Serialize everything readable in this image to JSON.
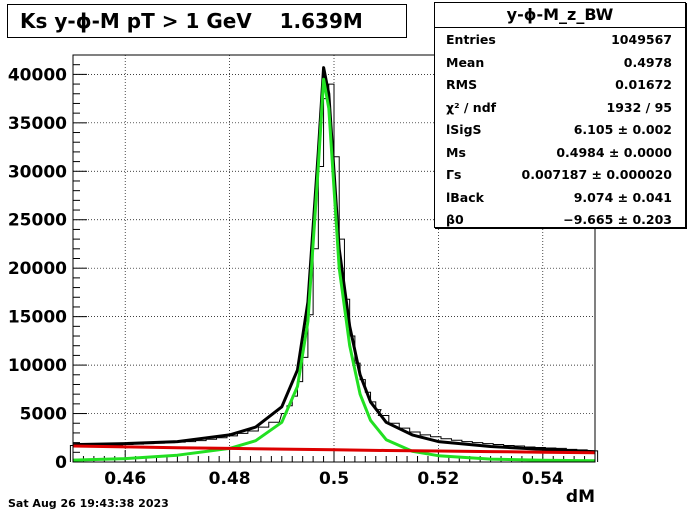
{
  "chart_data": {
    "type": "line",
    "title": "Ks y-ϕ-M pT > 1 GeV    1.639M",
    "xlabel": "dM",
    "ylabel": "",
    "xlim": [
      0.45,
      0.55
    ],
    "ylim": [
      0,
      42000
    ],
    "x_ticks": [
      "0.46",
      "0.48",
      "0.5",
      "0.52",
      "0.54"
    ],
    "y_ticks": [
      "0",
      "5000",
      "10000",
      "15000",
      "20000",
      "25000",
      "30000",
      "35000",
      "40000"
    ],
    "grid": true,
    "legend": "none",
    "series": [
      {
        "color": "#000000",
        "style": "histogram + total fit",
        "x": [
          0.45,
          0.46,
          0.47,
          0.48,
          0.485,
          0.49,
          0.493,
          0.495,
          0.497,
          0.498,
          0.499,
          0.501,
          0.503,
          0.505,
          0.507,
          0.51,
          0.515,
          0.52,
          0.53,
          0.54,
          0.55
        ],
        "values": [
          1800,
          1900,
          2100,
          2800,
          3600,
          5700,
          9500,
          16500,
          32000,
          40700,
          38000,
          22000,
          14000,
          9000,
          6200,
          4100,
          2800,
          2100,
          1600,
          1300,
          1050
        ]
      },
      {
        "color": "#22e022",
        "style": "signal Breit-Wigner",
        "x": [
          0.45,
          0.46,
          0.47,
          0.48,
          0.485,
          0.49,
          0.493,
          0.495,
          0.497,
          0.498,
          0.499,
          0.501,
          0.503,
          0.505,
          0.507,
          0.51,
          0.515,
          0.52,
          0.53,
          0.54,
          0.55
        ],
        "values": [
          200,
          350,
          700,
          1400,
          2200,
          4100,
          7800,
          14500,
          30500,
          39500,
          36500,
          20000,
          12000,
          7000,
          4300,
          2300,
          1100,
          650,
          300,
          180,
          120
        ]
      },
      {
        "color": "#dd0000",
        "style": "background",
        "x": [
          0.45,
          0.46,
          0.47,
          0.48,
          0.49,
          0.5,
          0.51,
          0.52,
          0.53,
          0.54,
          0.55
        ],
        "values": [
          1650,
          1560,
          1480,
          1400,
          1330,
          1260,
          1190,
          1130,
          1070,
          1010,
          950
        ]
      }
    ],
    "histogram_x": [
      0.4505,
      0.4525,
      0.4545,
      0.4565,
      0.4585,
      0.4605,
      0.4625,
      0.4645,
      0.4665,
      0.4685,
      0.4705,
      0.4725,
      0.4745,
      0.4765,
      0.4785,
      0.4805,
      0.4825,
      0.4845,
      0.4865,
      0.4885,
      0.4905,
      0.4915,
      0.4925,
      0.4935,
      0.4945,
      0.4955,
      0.4965,
      0.4975,
      0.4985,
      0.4995,
      0.5005,
      0.5015,
      0.5025,
      0.5035,
      0.5045,
      0.5055,
      0.5065,
      0.5075,
      0.5085,
      0.5095,
      0.5115,
      0.5135,
      0.5155,
      0.5175,
      0.5195,
      0.5215,
      0.5235,
      0.5255,
      0.5275,
      0.5295,
      0.5315,
      0.5335,
      0.5355,
      0.5375,
      0.5395,
      0.5415,
      0.5435,
      0.5455,
      0.5475,
      0.5495
    ],
    "histogram_values": [
      1700,
      1700,
      1650,
      1700,
      1750,
      1800,
      1850,
      1900,
      1950,
      2000,
      2050,
      2100,
      2200,
      2350,
      2500,
      2700,
      2950,
      3200,
      3600,
      4100,
      5000,
      5800,
      6800,
      8300,
      10800,
      15200,
      22000,
      30500,
      37500,
      39000,
      31500,
      23000,
      16800,
      13000,
      10200,
      8500,
      7200,
      6200,
      5400,
      4800,
      4000,
      3500,
      3100,
      2800,
      2600,
      2400,
      2250,
      2100,
      2000,
      1900,
      1800,
      1700,
      1650,
      1550,
      1500,
      1450,
      1400,
      1300,
      1250,
      1150
    ]
  },
  "stats_box": {
    "title": "y-ϕ-M_z_BW",
    "rows": [
      {
        "k": "Entries",
        "v": "1049567"
      },
      {
        "k": "Mean",
        "v": "0.4978"
      },
      {
        "k": "RMS",
        "v": "0.01672"
      },
      {
        "k": "χ² / ndf",
        "v": "1932 / 95"
      },
      {
        "k": "lSigS",
        "v": "6.105 ± 0.002"
      },
      {
        "k": "Ms",
        "v": "0.4984 ± 0.0000"
      },
      {
        "k": "Γs",
        "v": "0.007187 ± 0.000020"
      },
      {
        "k": "lBack",
        "v": "9.074 ± 0.041"
      },
      {
        "k": "β0",
        "v": "−9.665 ± 0.203"
      }
    ]
  },
  "footer": "Sat Aug 26 19:43:38 2023"
}
